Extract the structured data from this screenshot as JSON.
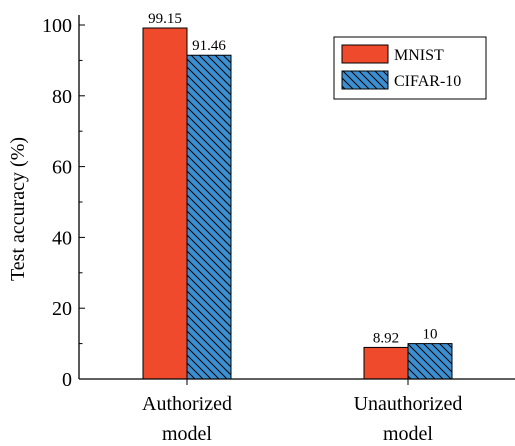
{
  "chart_data": {
    "type": "bar",
    "categories": [
      [
        "Authorized",
        "model"
      ],
      [
        "Unauthorized",
        "model"
      ]
    ],
    "series": [
      {
        "name": "MNIST",
        "values": [
          99.15,
          8.92
        ],
        "labels": [
          "99.15",
          "8.92"
        ],
        "color": "#f04a2d",
        "pattern": "solid"
      },
      {
        "name": "CIFAR-10",
        "values": [
          91.46,
          10
        ],
        "labels": [
          "91.46",
          "10"
        ],
        "color": "#3c8fd0",
        "pattern": "hatch"
      }
    ],
    "ylabel": "Test accuracy (%)",
    "ylim": [
      0,
      100
    ],
    "yticks": [
      0,
      20,
      40,
      60,
      80,
      100
    ],
    "grid": false,
    "legend": "top-right"
  }
}
